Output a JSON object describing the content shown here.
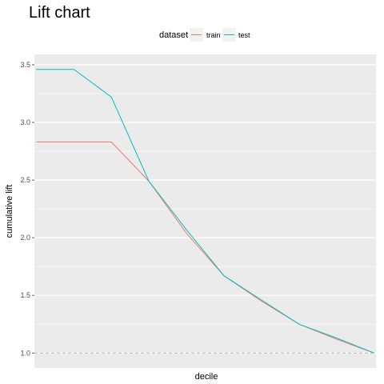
{
  "chart_data": {
    "type": "line",
    "title": "Lift chart",
    "xlabel": "decile",
    "ylabel": "cumulative lift",
    "legend": {
      "title": "dataset",
      "position": "top"
    },
    "x": [
      1,
      2,
      3,
      4,
      5,
      6,
      7,
      8,
      9,
      10
    ],
    "series": [
      {
        "name": "train",
        "color": "#F8766D",
        "values": [
          2.83,
          2.83,
          2.83,
          2.49,
          2.04,
          1.67,
          1.45,
          1.25,
          1.12,
          1.0
        ]
      },
      {
        "name": "test",
        "color": "#00BFC4",
        "values": [
          3.46,
          3.46,
          3.22,
          2.49,
          2.07,
          1.67,
          1.46,
          1.25,
          1.13,
          1.0
        ]
      }
    ],
    "yticks": [
      1.0,
      1.5,
      2.0,
      2.5,
      3.0,
      3.5
    ],
    "ytick_labels": [
      "1.0",
      "1.5",
      "2.0",
      "2.5",
      "3.0",
      "3.5"
    ],
    "ylim": [
      0.87,
      3.59
    ],
    "xlim": [
      0.95,
      10.05
    ],
    "xticks": [],
    "reference_line": {
      "y": 1.0,
      "style": "dashed",
      "color": "#a0a0a0"
    },
    "grid": true,
    "panel_background": "#EBEBEB"
  }
}
